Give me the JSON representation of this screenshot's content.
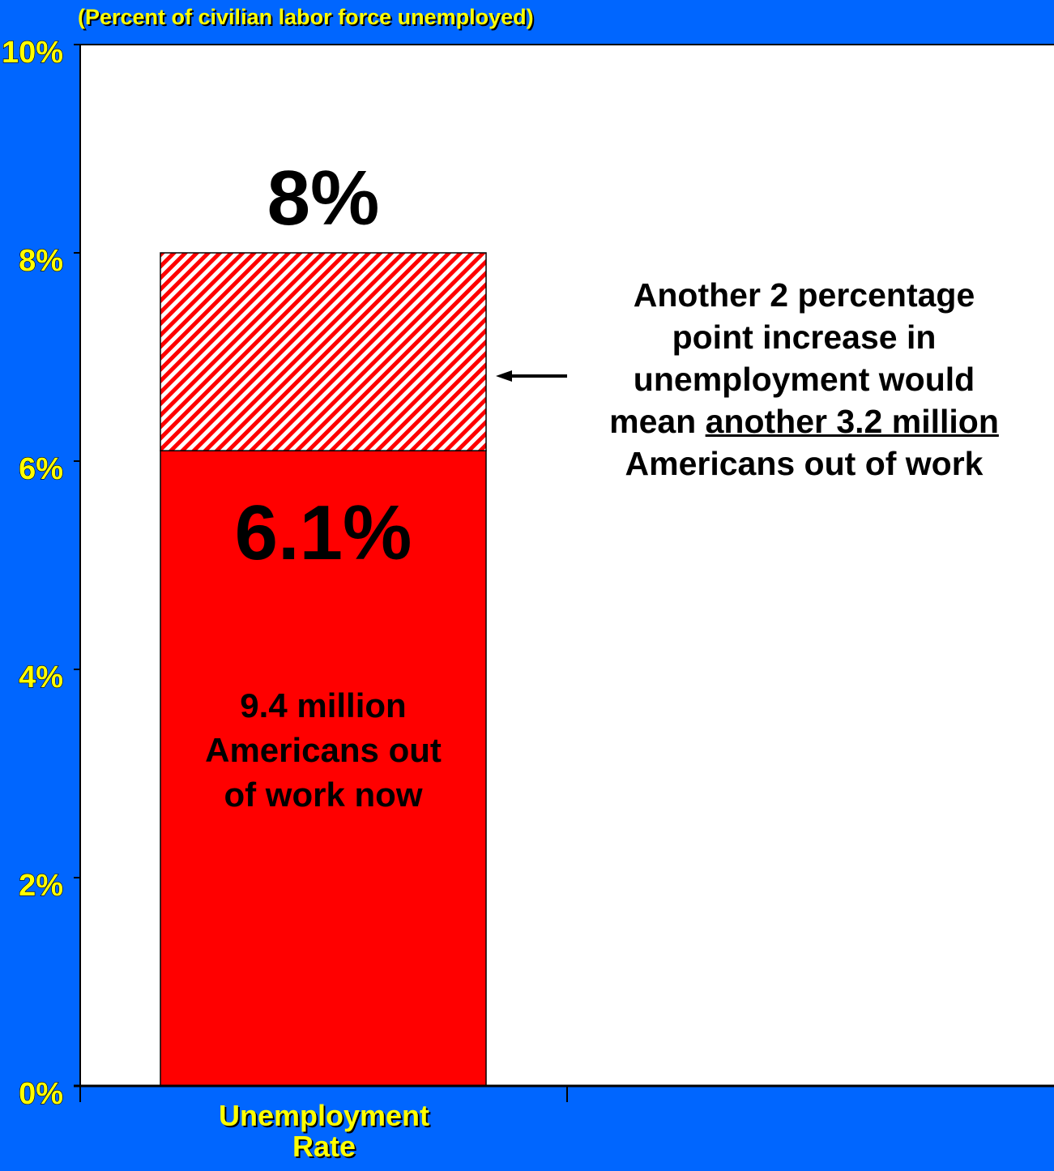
{
  "chart_data": {
    "type": "bar",
    "stacked": true,
    "subtitle": "(Percent of civilian labor force unemployed)",
    "categories": [
      "Unemployment Rate"
    ],
    "category_label_lines": [
      "Unemployment",
      "Rate"
    ],
    "series": [
      {
        "values": [
          6.1
        ],
        "fill": "solid",
        "color": "#ff0000"
      },
      {
        "values": [
          1.9
        ],
        "fill": "hatched",
        "color": "#ff0000"
      }
    ],
    "ylim": [
      0,
      10
    ],
    "yticks": [
      0,
      2,
      4,
      6,
      8,
      10
    ],
    "ytick_labels": [
      "0%",
      "2%",
      "4%",
      "6%",
      "8%",
      "10%"
    ],
    "data_labels": {
      "total": "8%",
      "base": "6.1%"
    },
    "base_description": [
      "9.4  million",
      "Americans out",
      "of work now"
    ],
    "annotation": {
      "line1": "Another 2 percentage",
      "line2": "point increase in",
      "line3": "unemployment would",
      "line4_prefix": "mean ",
      "line4_underlined": "another 3.2 million",
      "line5": "Americans out of work"
    },
    "colors": {
      "background": "#0066ff",
      "plot_area": "#ffffff",
      "bar": "#ff0000",
      "labels": "#ffff00"
    },
    "legend": "none",
    "grid": false
  }
}
